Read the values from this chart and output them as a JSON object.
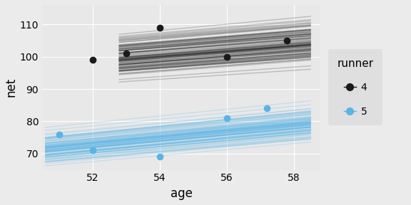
{
  "runner4_points": [
    [
      52.0,
      99
    ],
    [
      53.0,
      101
    ],
    [
      54.0,
      109
    ],
    [
      56.0,
      100
    ],
    [
      57.8,
      105
    ]
  ],
  "runner5_points": [
    [
      51.0,
      76
    ],
    [
      52.0,
      71
    ],
    [
      54.0,
      69
    ],
    [
      56.0,
      81
    ],
    [
      57.2,
      84
    ]
  ],
  "runner4_intercept_mean": 56.0,
  "runner4_slope_mean": 0.82,
  "runner4_intercept_std": 2.5,
  "runner4_slope_std": 0.04,
  "runner4_x_start": 52.8,
  "runner4_x_end": 58.5,
  "runner5_intercept_mean": 22.0,
  "runner5_slope_mean": 0.98,
  "runner5_intercept_std": 2.0,
  "runner5_slope_std": 0.035,
  "runner5_x_start": 50.6,
  "runner5_x_end": 58.5,
  "n_lines": 100,
  "xlim": [
    50.5,
    58.8
  ],
  "ylim": [
    65.0,
    116.0
  ],
  "xticks": [
    52,
    54,
    56,
    58
  ],
  "yticks": [
    70,
    80,
    90,
    100,
    110
  ],
  "xlabel": "age",
  "ylabel": "net",
  "runner4_color": "#1a1a1a",
  "runner5_color": "#5ab4e5",
  "bg_color": "#EBEBEB",
  "plot_bg_color": "#E8E8E8",
  "grid_color": "#ffffff",
  "legend_title": "runner",
  "legend_labels": [
    "4",
    "5"
  ],
  "legend_bg": "#DCDCDC"
}
